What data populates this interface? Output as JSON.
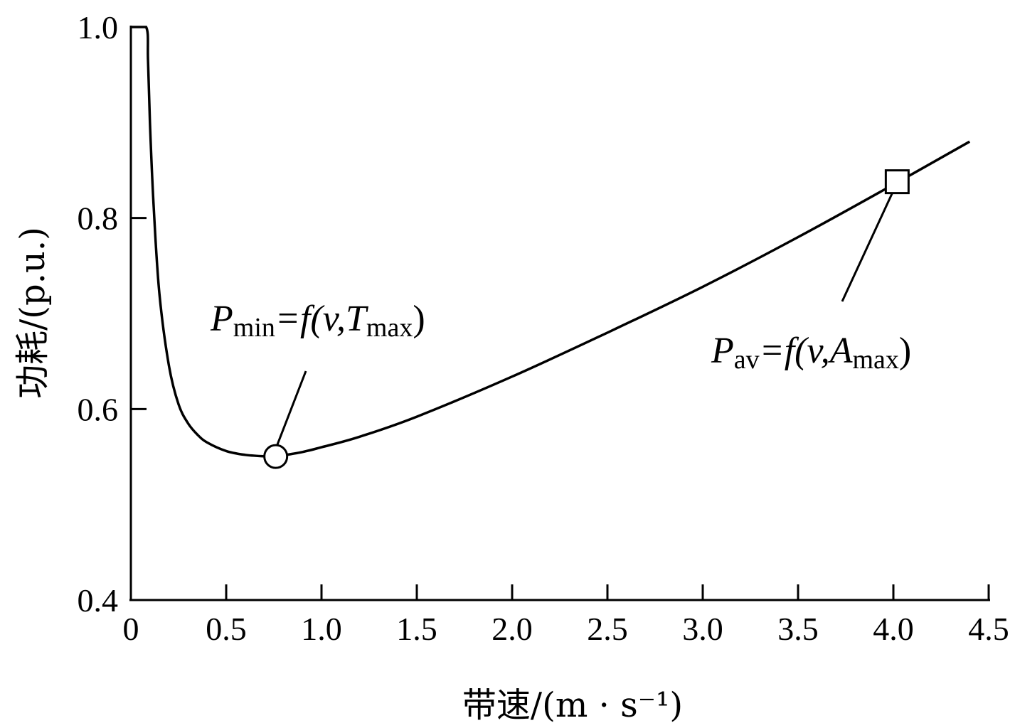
{
  "chart_data": {
    "type": "line",
    "xlabel": "带速/(m · s⁻¹)",
    "ylabel": "功耗/(p.u.)",
    "xlim": [
      0,
      4.5
    ],
    "ylim": [
      0.4,
      1.0
    ],
    "x_ticks": [
      "0",
      "0.5",
      "1.0",
      "1.5",
      "2.0",
      "2.5",
      "3.0",
      "3.5",
      "4.0",
      "4.5"
    ],
    "y_ticks": [
      "0.4",
      "0.6",
      "0.8",
      "1.0"
    ],
    "grid": false,
    "legend": "none",
    "series": [
      {
        "x": [
          0.0,
          0.08,
          0.09,
          0.1,
          0.12,
          0.15,
          0.2,
          0.25,
          0.3,
          0.35,
          0.4,
          0.5,
          0.6,
          0.7,
          0.76,
          0.8,
          0.9,
          1.0,
          1.2,
          1.5,
          2.0,
          2.5,
          3.0,
          3.5,
          4.0,
          4.4
        ],
        "y": [
          1.0,
          1.0,
          0.965,
          0.9,
          0.81,
          0.72,
          0.645,
          0.605,
          0.585,
          0.573,
          0.565,
          0.556,
          0.552,
          0.5505,
          0.5503,
          0.5515,
          0.555,
          0.56,
          0.571,
          0.592,
          0.634,
          0.68,
          0.728,
          0.78,
          0.835,
          0.88
        ]
      }
    ],
    "markers": [
      {
        "shape": "circle",
        "x": 0.76,
        "y": 0.5503
      },
      {
        "shape": "square",
        "x": 4.02,
        "y": 0.838
      }
    ],
    "annotations": [
      {
        "main": "P",
        "sub": "min",
        "rest": "=f(v,T",
        "sub2": "max",
        "close": ")"
      },
      {
        "main": "P",
        "sub": "av",
        "rest": "=f(v,A",
        "sub2": "max",
        "close": ")"
      }
    ]
  }
}
